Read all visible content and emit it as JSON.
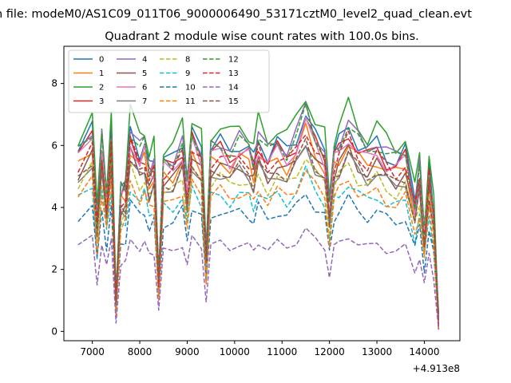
{
  "suptitle": "n file: modeM0/AS1C09_011T06_9000006490_53171cztM0_level2_quad_clean.evt",
  "chart_data": {
    "type": "line",
    "title": "Quadrant 2 module wise count rates with 100.0s bins.",
    "xlabel": "",
    "ylabel": "",
    "x_offset_label": "+4.913e8",
    "xlim": [
      6400,
      14750
    ],
    "ylim": [
      -0.3,
      9.2
    ],
    "x_ticks": [
      7000,
      8000,
      9000,
      10000,
      11000,
      12000,
      13000,
      14000
    ],
    "x_tick_labels": [
      "7000",
      "8000",
      "9000",
      "10000",
      "11000",
      "12000",
      "13000",
      "14000"
    ],
    "y_ticks": [
      0,
      2,
      4,
      6,
      8
    ],
    "y_tick_labels": [
      "0",
      "2",
      "4",
      "6",
      "8"
    ],
    "grid": false,
    "legend": {
      "location": "upper-left",
      "columns": 4
    },
    "x_key": [
      6700,
      7000,
      7100,
      7200,
      7300,
      7400,
      7500,
      7600,
      7700,
      7800,
      8000,
      8100,
      8200,
      8300,
      8400,
      8500,
      8700,
      8900,
      9000,
      9100,
      9300,
      9400,
      9500,
      9700,
      9900,
      10100,
      10300,
      10400,
      10500,
      10700,
      10900,
      11100,
      11300,
      11500,
      11700,
      11900,
      12000,
      12100,
      12200,
      12400,
      12600,
      12800,
      13000,
      13200,
      13400,
      13600,
      13800,
      13900,
      14000,
      14100,
      14200,
      14300
    ],
    "series": [
      {
        "name": "0",
        "color": "#1f77b4",
        "dash": "solid",
        "base": 5.8
      },
      {
        "name": "1",
        "color": "#ff7f0e",
        "dash": "solid",
        "base": 5.3
      },
      {
        "name": "2",
        "color": "#2ca02c",
        "dash": "solid",
        "base": 6.3
      },
      {
        "name": "3",
        "color": "#d62728",
        "dash": "solid",
        "base": 5.6
      },
      {
        "name": "4",
        "color": "#9467bd",
        "dash": "solid",
        "base": 5.9
      },
      {
        "name": "5",
        "color": "#8c564b",
        "dash": "solid",
        "base": 5.1
      },
      {
        "name": "6",
        "color": "#e377c2",
        "dash": "solid",
        "base": 5.5
      },
      {
        "name": "7",
        "color": "#7f7f7f",
        "dash": "solid",
        "base": 4.9
      },
      {
        "name": "8",
        "color": "#bcbd22",
        "dash": "dashed",
        "base": 4.7
      },
      {
        "name": "9",
        "color": "#17becf",
        "dash": "dashed",
        "base": 4.2
      },
      {
        "name": "10",
        "color": "#1f77b4",
        "dash": "dashed",
        "base": 3.7
      },
      {
        "name": "11",
        "color": "#ff7f0e",
        "dash": "dashed",
        "base": 4.3
      },
      {
        "name": "12",
        "color": "#2ca02c",
        "dash": "dashed",
        "base": 5.8
      },
      {
        "name": "13",
        "color": "#d62728",
        "dash": "dashed",
        "base": 5.4
      },
      {
        "name": "14",
        "color": "#9467bd",
        "dash": "dashed",
        "base": 2.7
      },
      {
        "name": "15",
        "color": "#8c564b",
        "dash": "dashed",
        "base": 5.0
      }
    ],
    "profile": [
      1.0,
      1.12,
      0.6,
      1.05,
      0.75,
      1.1,
      0.15,
      0.78,
      0.8,
      1.12,
      1.0,
      1.05,
      0.9,
      0.95,
      0.28,
      0.95,
      0.95,
      1.05,
      0.8,
      1.1,
      1.0,
      0.4,
      1.02,
      1.05,
      1.0,
      1.05,
      1.02,
      0.95,
      1.08,
      0.98,
      1.05,
      1.0,
      1.08,
      1.22,
      1.08,
      1.0,
      0.68,
      1.0,
      1.05,
      1.15,
      1.05,
      1.0,
      1.05,
      0.98,
      0.95,
      1.0,
      0.72,
      0.9,
      0.55,
      0.9,
      0.65,
      0.05
    ]
  }
}
